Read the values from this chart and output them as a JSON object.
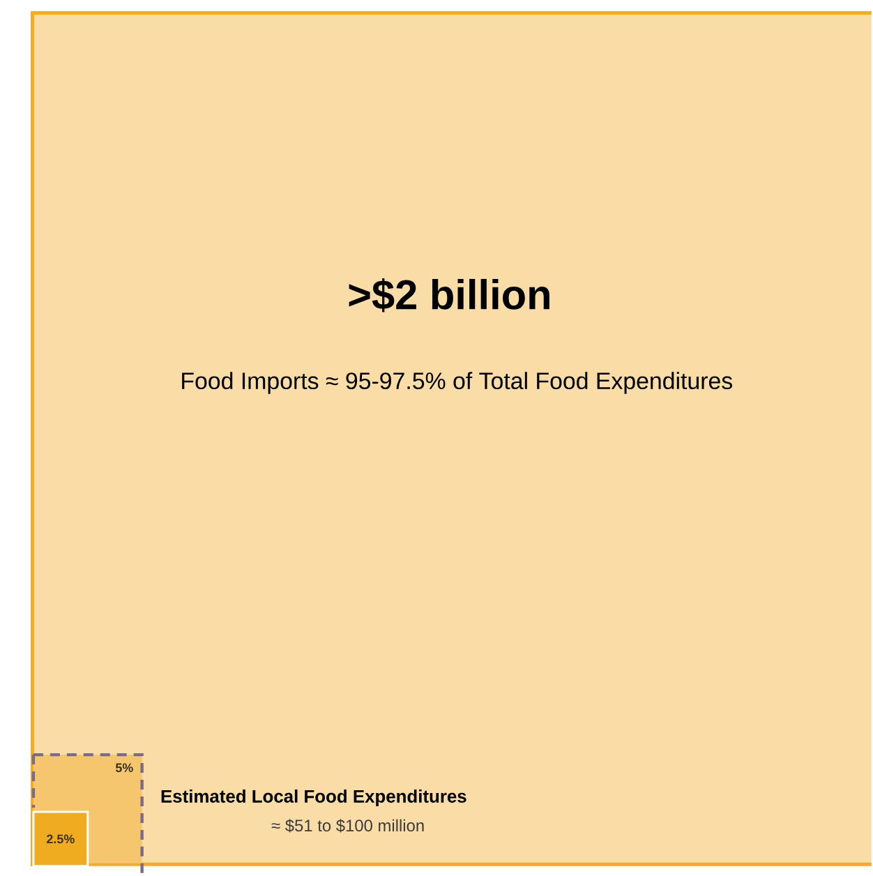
{
  "chart_data": {
    "type": "other",
    "title": ">$2 billion",
    "subtitle": "Food Imports ≈ 95-97.5% of Total Food Expenditures",
    "color": "#f9dca6",
    "categories": [
      null,
      null
    ],
    "values": [
      5,
      2.5
    ],
    "value_labels": [
      "5%",
      "2.5%"
    ],
    "colors": [
      "#f5c66d",
      "#efac20"
    ],
    "annotations": [
      "Estimated Local Food Expenditures",
      "≈ $51 to $100 million"
    ]
  }
}
